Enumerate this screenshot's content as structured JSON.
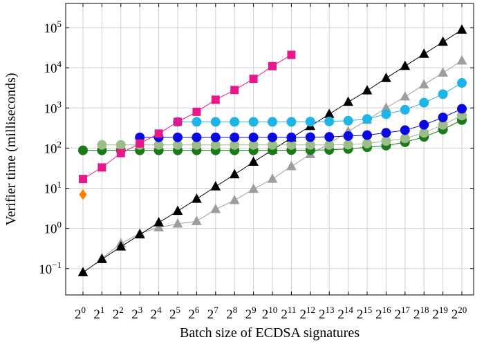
{
  "chart_data": {
    "type": "line",
    "xlabel": "Batch size of ECDSA signatures",
    "ylabel": "Verifier time (milliseconds)",
    "categories": [
      "2^0",
      "2^1",
      "2^2",
      "2^3",
      "2^4",
      "2^5",
      "2^6",
      "2^7",
      "2^8",
      "2^9",
      "2^10",
      "2^11",
      "2^12",
      "2^13",
      "2^14",
      "2^15",
      "2^16",
      "2^17",
      "2^18",
      "2^19",
      "2^20"
    ],
    "ylog": true,
    "grid": true,
    "ylim": [
      0.022,
      400000
    ],
    "yticks": [
      {
        "value": 0.1,
        "label": "10^−1"
      },
      {
        "value": 1,
        "label": "10^0"
      },
      {
        "value": 10,
        "label": "10^1"
      },
      {
        "value": 100,
        "label": "10^2"
      },
      {
        "value": 1000,
        "label": "10^3"
      },
      {
        "value": 10000,
        "label": "10^4"
      },
      {
        "value": 100000,
        "label": "10^5"
      }
    ],
    "series": [
      {
        "color": "#9e9e9e",
        "marker": "triangle",
        "values": [
          null,
          0.18,
          0.42,
          0.75,
          1.05,
          1.3,
          1.5,
          3,
          5,
          9.5,
          17,
          35,
          70,
          130,
          260,
          500,
          1000,
          1900,
          3800,
          7500,
          15000
        ]
      },
      {
        "color": "#000000",
        "marker": "triangle",
        "values": [
          0.08,
          0.17,
          0.35,
          0.7,
          1.4,
          2.7,
          5.4,
          11,
          22,
          45,
          90,
          180,
          350,
          700,
          1400,
          2700,
          5500,
          11000,
          22000,
          44000,
          88000
        ]
      },
      {
        "color": "#1a7a1a",
        "marker": "circle",
        "values": [
          88,
          88,
          88,
          88,
          88,
          88,
          88,
          88,
          88,
          88,
          88,
          89,
          89,
          90,
          95,
          105,
          115,
          140,
          190,
          290,
          500
        ]
      },
      {
        "color": "#9cbc8a",
        "marker": "circle",
        "values": [
          null,
          120,
          120,
          120,
          120,
          120,
          120,
          120,
          120,
          120,
          120,
          120,
          120,
          120,
          122,
          130,
          150,
          175,
          240,
          380,
          650
        ]
      },
      {
        "color": "#0a0ae0",
        "marker": "circle",
        "values": [
          null,
          null,
          null,
          185,
          185,
          185,
          185,
          185,
          185,
          185,
          185,
          185,
          187,
          190,
          200,
          210,
          240,
          280,
          380,
          580,
          950
        ]
      },
      {
        "color": "#1eb4e6",
        "marker": "circle",
        "values": [
          null,
          null,
          null,
          null,
          null,
          450,
          450,
          450,
          450,
          450,
          450,
          450,
          455,
          460,
          480,
          530,
          700,
          900,
          1350,
          2200,
          4200
        ]
      },
      {
        "color": "#e6198c",
        "marker": "square",
        "values": [
          17,
          33,
          75,
          130,
          230,
          450,
          800,
          1600,
          2800,
          5300,
          11000,
          21000,
          null,
          null,
          null,
          null,
          null,
          null,
          null,
          null,
          null
        ]
      },
      {
        "color": "#ff8000",
        "marker": "diamond",
        "values": [
          7,
          null,
          null,
          null,
          null,
          null,
          null,
          null,
          null,
          null,
          null,
          null,
          null,
          null,
          null,
          null,
          null,
          null,
          null,
          null,
          null
        ]
      }
    ]
  }
}
